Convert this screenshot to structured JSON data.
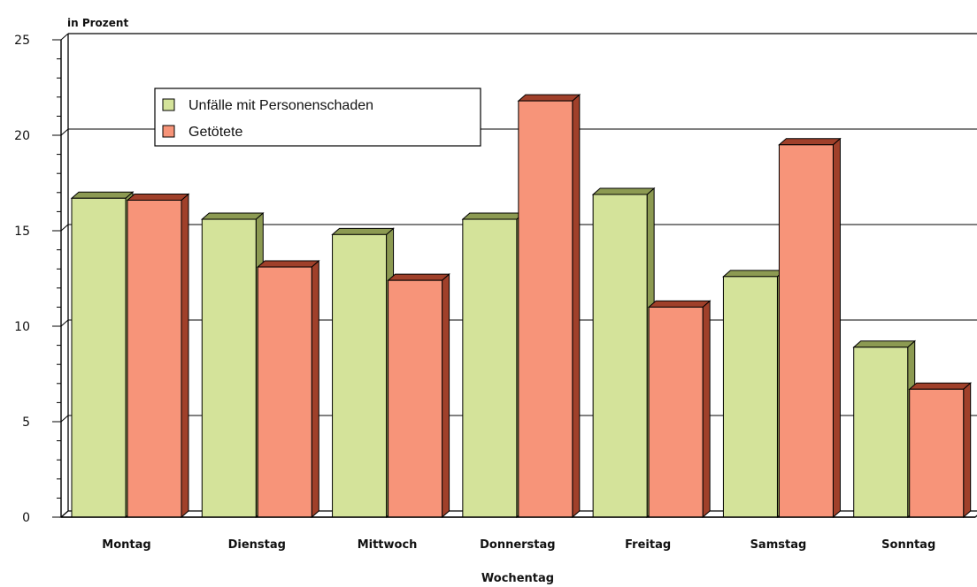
{
  "chart_data": {
    "type": "bar",
    "unit_label": "in Prozent",
    "xlabel": "Wochentag",
    "ylabel": "",
    "ylim": [
      0,
      25
    ],
    "yticks": [
      "0",
      "5",
      "10",
      "15",
      "20",
      "25"
    ],
    "grid": true,
    "legend_position": "top-left",
    "categories": [
      "Montag",
      "Dienstag",
      "Mittwoch",
      "Donnerstag",
      "Freitag",
      "Samstag",
      "Sonntag"
    ],
    "series": [
      {
        "name": "Unfälle mit Personenschaden",
        "color": "#d4e39a",
        "dark": "#8c9a52",
        "values": [
          16.7,
          15.6,
          14.8,
          15.6,
          16.9,
          12.6,
          8.9
        ]
      },
      {
        "name": "Getötete",
        "color": "#f79479",
        "dark": "#a0402a",
        "values": [
          16.6,
          13.1,
          12.4,
          21.8,
          11.0,
          19.5,
          6.7
        ]
      }
    ]
  }
}
